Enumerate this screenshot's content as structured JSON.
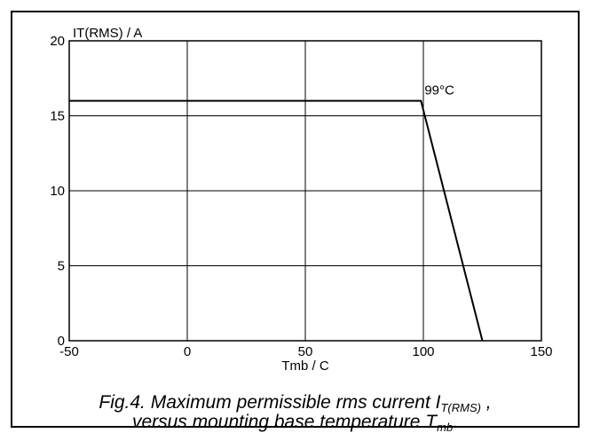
{
  "chart_data": {
    "type": "line",
    "ylabel": "IT(RMS) / A",
    "xlabel": "Tmb / C",
    "xlim": [
      -50,
      150
    ],
    "ylim": [
      0,
      20
    ],
    "xticks": [
      "-50",
      "0",
      "50",
      "100",
      "150"
    ],
    "yticks": [
      "0",
      "5",
      "10",
      "15",
      "20"
    ],
    "grid": true,
    "series": [
      {
        "x": [
          -50,
          99,
          125
        ],
        "y": [
          16,
          16,
          0
        ]
      }
    ],
    "annotations": [
      {
        "text": "99°C",
        "x": 99,
        "y": 16
      }
    ]
  },
  "caption": {
    "line1_prefix": "Fig.4.  Maximum permissible rms current I",
    "line1_sub": "T(RMS)",
    "line1_suffix": " ,",
    "line2_prefix": "versus mounting base temperature T",
    "line2_sub": "mb",
    "line2_suffix": "."
  }
}
